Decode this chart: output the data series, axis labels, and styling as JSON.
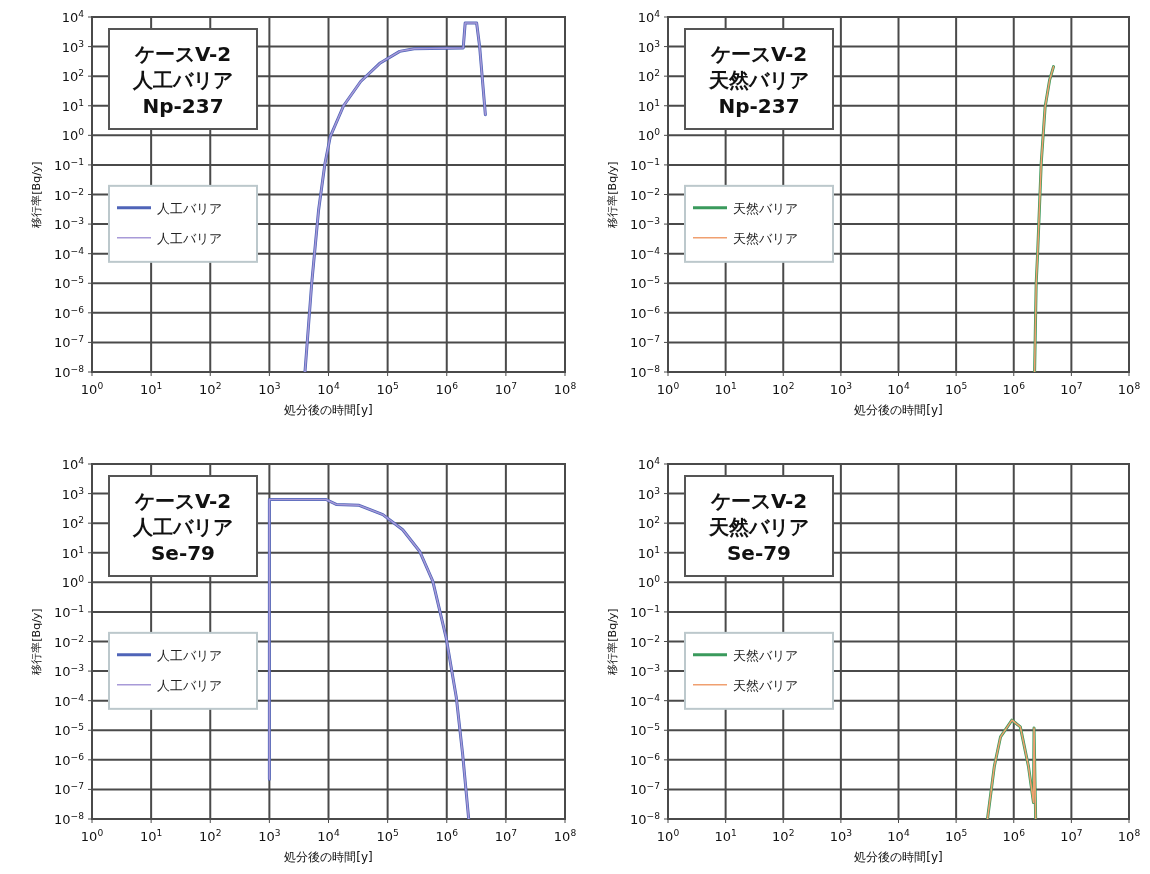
{
  "chart_data": [
    {
      "type": "line",
      "title": "ケースV-2\n人工バリア\nNp-237",
      "xlabel": "処分後の時間[y]",
      "ylabel": "移行率[Bq/y]",
      "log": "xy",
      "grid": true,
      "legend": "left",
      "xlim": [
        1,
        100000000
      ],
      "ylim": [
        1e-08,
        10000
      ],
      "xticks": [
        {
          "value": 1,
          "label": "10$^{0}$"
        },
        {
          "value": 10,
          "label": "10$^{1}$"
        },
        {
          "value": 100,
          "label": "10$^{2}$"
        },
        {
          "value": 1000,
          "label": "10$^{3}$"
        },
        {
          "value": 10000,
          "label": "10$^{4}$"
        },
        {
          "value": 100000,
          "label": "10$^{5}$"
        },
        {
          "value": 1000000,
          "label": "10$^{6}$"
        },
        {
          "value": 10000000,
          "label": "10$^{7}$"
        },
        {
          "value": 100000000,
          "label": "10$^{8}$"
        }
      ],
      "yticks": [
        {
          "value": 1e-08,
          "label": "10$^{−8}$"
        },
        {
          "value": 1e-07,
          "label": "10$^{−7}$"
        },
        {
          "value": 1e-06,
          "label": "10$^{−6}$"
        },
        {
          "value": 1e-05,
          "label": "10$^{−5}$"
        },
        {
          "value": 0.0001,
          "label": "10$^{−4}$"
        },
        {
          "value": 0.001,
          "label": "10$^{−3}$"
        },
        {
          "value": 0.01,
          "label": "10$^{−2}$"
        },
        {
          "value": 0.1,
          "label": "10$^{−1}$"
        },
        {
          "value": 1,
          "label": "10$^{0}$"
        },
        {
          "value": 10,
          "label": "10$^{1}$"
        },
        {
          "value": 100,
          "label": "10$^{2}$"
        },
        {
          "value": 1000,
          "label": "10$^{3}$"
        },
        {
          "value": 10000,
          "label": "10$^{4}$"
        }
      ],
      "series": [
        {
          "name": "人工バリア",
          "color": "#4f64b8",
          "x": [
            4000,
            5200,
            6800,
            8700,
            10700,
            18000,
            35000,
            75000,
            160000,
            280000,
            1900000,
            2050000,
            3200000,
            3600000,
            4500000
          ],
          "values": [
            1e-08,
            1e-05,
            0.003,
            0.11,
            0.9,
            10,
            66,
            280,
            690,
            850,
            900,
            6300,
            6300,
            1000,
            5
          ]
        },
        {
          "name": "人工バリア",
          "color": "#a89ad8",
          "x": [
            4000,
            5200,
            6800,
            8700,
            10700,
            18000,
            35000,
            75000,
            160000,
            280000,
            1900000,
            2050000,
            3200000,
            3600000,
            4500000
          ],
          "values": [
            1e-08,
            1e-05,
            0.003,
            0.11,
            0.9,
            10,
            66,
            280,
            690,
            850,
            900,
            6300,
            6300,
            1000,
            5
          ]
        }
      ]
    },
    {
      "type": "line",
      "title": "ケースV-2\n天然バリア\nNp-237",
      "xlabel": "処分後の時間[y]",
      "ylabel": "移行率[Bq/y]",
      "log": "xy",
      "grid": true,
      "legend": "left",
      "xlim": [
        1,
        100000000
      ],
      "ylim": [
        1e-08,
        10000
      ],
      "xticks": [
        {
          "value": 1,
          "label": "10$^{0}$"
        },
        {
          "value": 10,
          "label": "10$^{1}$"
        },
        {
          "value": 100,
          "label": "10$^{2}$"
        },
        {
          "value": 1000,
          "label": "10$^{3}$"
        },
        {
          "value": 10000,
          "label": "10$^{4}$"
        },
        {
          "value": 100000,
          "label": "10$^{5}$"
        },
        {
          "value": 1000000,
          "label": "10$^{6}$"
        },
        {
          "value": 10000000,
          "label": "10$^{7}$"
        },
        {
          "value": 100000000,
          "label": "10$^{8}$"
        }
      ],
      "yticks": [
        {
          "value": 1e-08,
          "label": "10$^{−8}$"
        },
        {
          "value": 1e-07,
          "label": "10$^{−7}$"
        },
        {
          "value": 1e-06,
          "label": "10$^{−6}$"
        },
        {
          "value": 1e-05,
          "label": "10$^{−5}$"
        },
        {
          "value": 0.0001,
          "label": "10$^{−4}$"
        },
        {
          "value": 0.001,
          "label": "10$^{−3}$"
        },
        {
          "value": 0.01,
          "label": "10$^{−2}$"
        },
        {
          "value": 0.1,
          "label": "10$^{−1}$"
        },
        {
          "value": 1,
          "label": "10$^{0}$"
        },
        {
          "value": 10,
          "label": "10$^{1}$"
        },
        {
          "value": 100,
          "label": "10$^{2}$"
        },
        {
          "value": 1000,
          "label": "10$^{3}$"
        },
        {
          "value": 10000,
          "label": "10$^{4}$"
        }
      ],
      "series": [
        {
          "name": "天然バリア",
          "color": "#3a9a5c",
          "x": [
            2300000,
            2450000,
            2600000,
            3000000,
            3500000,
            4200000,
            4900000
          ],
          "values": [
            1e-08,
            1e-05,
            0.00011,
            0.12,
            9,
            75,
            210
          ]
        },
        {
          "name": "天然バリア",
          "color": "#f0a070",
          "x": [
            2300000,
            2450000,
            2600000,
            3000000,
            3500000,
            4200000,
            4900000
          ],
          "values": [
            1e-08,
            1e-05,
            0.00011,
            0.12,
            9,
            75,
            210
          ]
        }
      ]
    },
    {
      "type": "line",
      "title": "ケースV-2\n人工バリア\nSe-79",
      "xlabel": "処分後の時間[y]",
      "ylabel": "移行率[Bq/y]",
      "log": "xy",
      "grid": true,
      "legend": "left",
      "xlim": [
        1,
        100000000
      ],
      "ylim": [
        1e-08,
        10000
      ],
      "xticks": [
        {
          "value": 1,
          "label": "10$^{0}$"
        },
        {
          "value": 10,
          "label": "10$^{1}$"
        },
        {
          "value": 100,
          "label": "10$^{2}$"
        },
        {
          "value": 1000,
          "label": "10$^{3}$"
        },
        {
          "value": 10000,
          "label": "10$^{4}$"
        },
        {
          "value": 100000,
          "label": "10$^{5}$"
        },
        {
          "value": 1000000,
          "label": "10$^{6}$"
        },
        {
          "value": 10000000,
          "label": "10$^{7}$"
        },
        {
          "value": 100000000,
          "label": "10$^{8}$"
        }
      ],
      "yticks": [
        {
          "value": 1e-08,
          "label": "10$^{−8}$"
        },
        {
          "value": 1e-07,
          "label": "10$^{−7}$"
        },
        {
          "value": 1e-06,
          "label": "10$^{−6}$"
        },
        {
          "value": 1e-05,
          "label": "10$^{−5}$"
        },
        {
          "value": 0.0001,
          "label": "10$^{−4}$"
        },
        {
          "value": 0.001,
          "label": "10$^{−3}$"
        },
        {
          "value": 0.01,
          "label": "10$^{−2}$"
        },
        {
          "value": 0.1,
          "label": "10$^{−1}$"
        },
        {
          "value": 1,
          "label": "10$^{0}$"
        },
        {
          "value": 10,
          "label": "10$^{1}$"
        },
        {
          "value": 100,
          "label": "10$^{2}$"
        },
        {
          "value": 1000,
          "label": "10$^{3}$"
        },
        {
          "value": 10000,
          "label": "10$^{4}$"
        }
      ],
      "series": [
        {
          "name": "人工バリア",
          "color": "#4f64b8",
          "x": [
            1000,
            1000,
            9100,
            13500,
            33000,
            83000,
            180000,
            350000,
            580000,
            980000,
            1450000,
            1860000,
            2350000
          ],
          "values": [
            2.2e-07,
            630,
            630,
            430,
            400,
            195,
            60,
            11,
            1.1,
            0.013,
            0.00013,
            1.5e-06,
            1e-08
          ]
        },
        {
          "name": "人工バリア",
          "color": "#a89ad8",
          "x": [
            1000,
            1000,
            9100,
            13500,
            33000,
            83000,
            180000,
            350000,
            580000,
            980000,
            1450000,
            1860000,
            2350000
          ],
          "values": [
            2.2e-07,
            630,
            630,
            430,
            400,
            195,
            60,
            11,
            1.1,
            0.013,
            0.00013,
            1.5e-06,
            1e-08
          ]
        }
      ]
    },
    {
      "type": "line",
      "title": "ケースV-2\n天然バリア\nSe-79",
      "xlabel": "処分後の時間[y]",
      "ylabel": "移行率[Bq/y]",
      "log": "xy",
      "grid": true,
      "legend": "left",
      "xlim": [
        1,
        100000000
      ],
      "ylim": [
        1e-08,
        10000
      ],
      "xticks": [
        {
          "value": 1,
          "label": "10$^{0}$"
        },
        {
          "value": 10,
          "label": "10$^{1}$"
        },
        {
          "value": 100,
          "label": "10$^{2}$"
        },
        {
          "value": 1000,
          "label": "10$^{3}$"
        },
        {
          "value": 10000,
          "label": "10$^{4}$"
        },
        {
          "value": 100000,
          "label": "10$^{5}$"
        },
        {
          "value": 1000000,
          "label": "10$^{6}$"
        },
        {
          "value": 10000000,
          "label": "10$^{7}$"
        },
        {
          "value": 100000000,
          "label": "10$^{8}$"
        }
      ],
      "yticks": [
        {
          "value": 1e-08,
          "label": "10$^{−8}$"
        },
        {
          "value": 1e-07,
          "label": "10$^{−7}$"
        },
        {
          "value": 1e-06,
          "label": "10$^{−6}$"
        },
        {
          "value": 1e-05,
          "label": "10$^{−5}$"
        },
        {
          "value": 0.0001,
          "label": "10$^{−4}$"
        },
        {
          "value": 0.001,
          "label": "10$^{−3}$"
        },
        {
          "value": 0.01,
          "label": "10$^{−2}$"
        },
        {
          "value": 0.1,
          "label": "10$^{−1}$"
        },
        {
          "value": 1,
          "label": "10$^{0}$"
        },
        {
          "value": 10,
          "label": "10$^{1}$"
        },
        {
          "value": 100,
          "label": "10$^{2}$"
        },
        {
          "value": 1000,
          "label": "10$^{3}$"
        },
        {
          "value": 10000,
          "label": "10$^{4}$"
        }
      ],
      "series": [
        {
          "name": "天然バリア",
          "color": "#3a9a5c",
          "x": [
            350000,
            460000,
            590000,
            930000,
            1300000,
            1800000,
            2200000,
            2250000,
            2400000
          ],
          "values": [
            1e-08,
            6e-07,
            6e-06,
            2.2e-05,
            1.3e-05,
            6e-07,
            3.6e-08,
            1.2e-05,
            1e-08
          ]
        },
        {
          "name": "天然バリア",
          "color": "#f0a070",
          "x": [
            350000,
            460000,
            590000,
            930000,
            1300000,
            1800000,
            2200000,
            2250000,
            2400000
          ],
          "values": [
            1e-08,
            6e-07,
            6e-06,
            2.2e-05,
            1.3e-05,
            6e-07,
            3.6e-08,
            1.2e-05,
            1e-08
          ]
        }
      ]
    }
  ]
}
